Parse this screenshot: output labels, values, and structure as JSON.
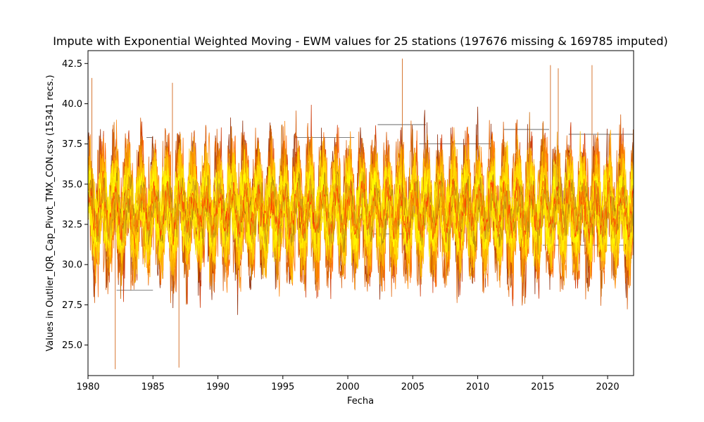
{
  "chart_data": {
    "type": "line",
    "title": "Impute with Exponential Weighted Moving - EWM values for 25 stations (197676 missing & 169785 imputed)",
    "xlabel": "Fecha",
    "ylabel": "Values in Outlier_IQR_Cap_Pivot_TMX_CON.csv (15341 recs.)",
    "xlim": [
      1980,
      2022
    ],
    "ylim": [
      23.1,
      43.3
    ],
    "x_ticks": [
      1980,
      1985,
      1990,
      1995,
      2000,
      2005,
      2010,
      2015,
      2020
    ],
    "x_tick_labels": [
      "1980",
      "1985",
      "1990",
      "1995",
      "2000",
      "2005",
      "2010",
      "2015",
      "2020"
    ],
    "y_ticks": [
      25.0,
      27.5,
      30.0,
      32.5,
      35.0,
      37.5,
      40.0,
      42.5
    ],
    "y_tick_labels": [
      "25.0",
      "27.5",
      "30.0",
      "32.5",
      "35.0",
      "37.5",
      "40.0",
      "42.5"
    ],
    "grid": false,
    "legend": "none",
    "series_count": 25,
    "series_colors": [
      "#8b2500",
      "#cc3300",
      "#d45500",
      "#e06000",
      "#c86400",
      "#ff6600",
      "#ff7f00",
      "#ff8c00",
      "#e69500",
      "#ffa500",
      "#ffb000",
      "#ffbb00",
      "#ffc200",
      "#ffcc00",
      "#ffd400",
      "#ffdc00",
      "#ffe400",
      "#ffea00",
      "#fff000",
      "#fff500",
      "#ffff00",
      "#b8860b",
      "#daa520",
      "#ff4500",
      "#f0a000"
    ],
    "series_stats": {
      "center": 33.4,
      "seasonal_amplitude": 3.0,
      "observed_min": 23.5,
      "observed_max": 42.8
    },
    "imputed_segments": [
      {
        "x": [
          1982.2,
          1985.0
        ],
        "y": 28.4
      },
      {
        "x": [
          1984.5,
          1985.0
        ],
        "y": 37.9
      },
      {
        "x": [
          1985.0,
          1985.3
        ],
        "y": 36.5
      },
      {
        "x": [
          1996.0,
          2000.5
        ],
        "y": 37.9
      },
      {
        "x": [
          2002.3,
          2006.0
        ],
        "y": 38.7
      },
      {
        "x": [
          2005.5,
          2011.0
        ],
        "y": 37.5
      },
      {
        "x": [
          2012.0,
          2015.5
        ],
        "y": 38.4
      },
      {
        "x": [
          2015.0,
          2021.5
        ],
        "y": 31.2
      },
      {
        "x": [
          2017.0,
          2022.0
        ],
        "y": 38.1
      },
      {
        "x": [
          2002.0,
          2005.0
        ],
        "y": 31.9
      }
    ]
  }
}
